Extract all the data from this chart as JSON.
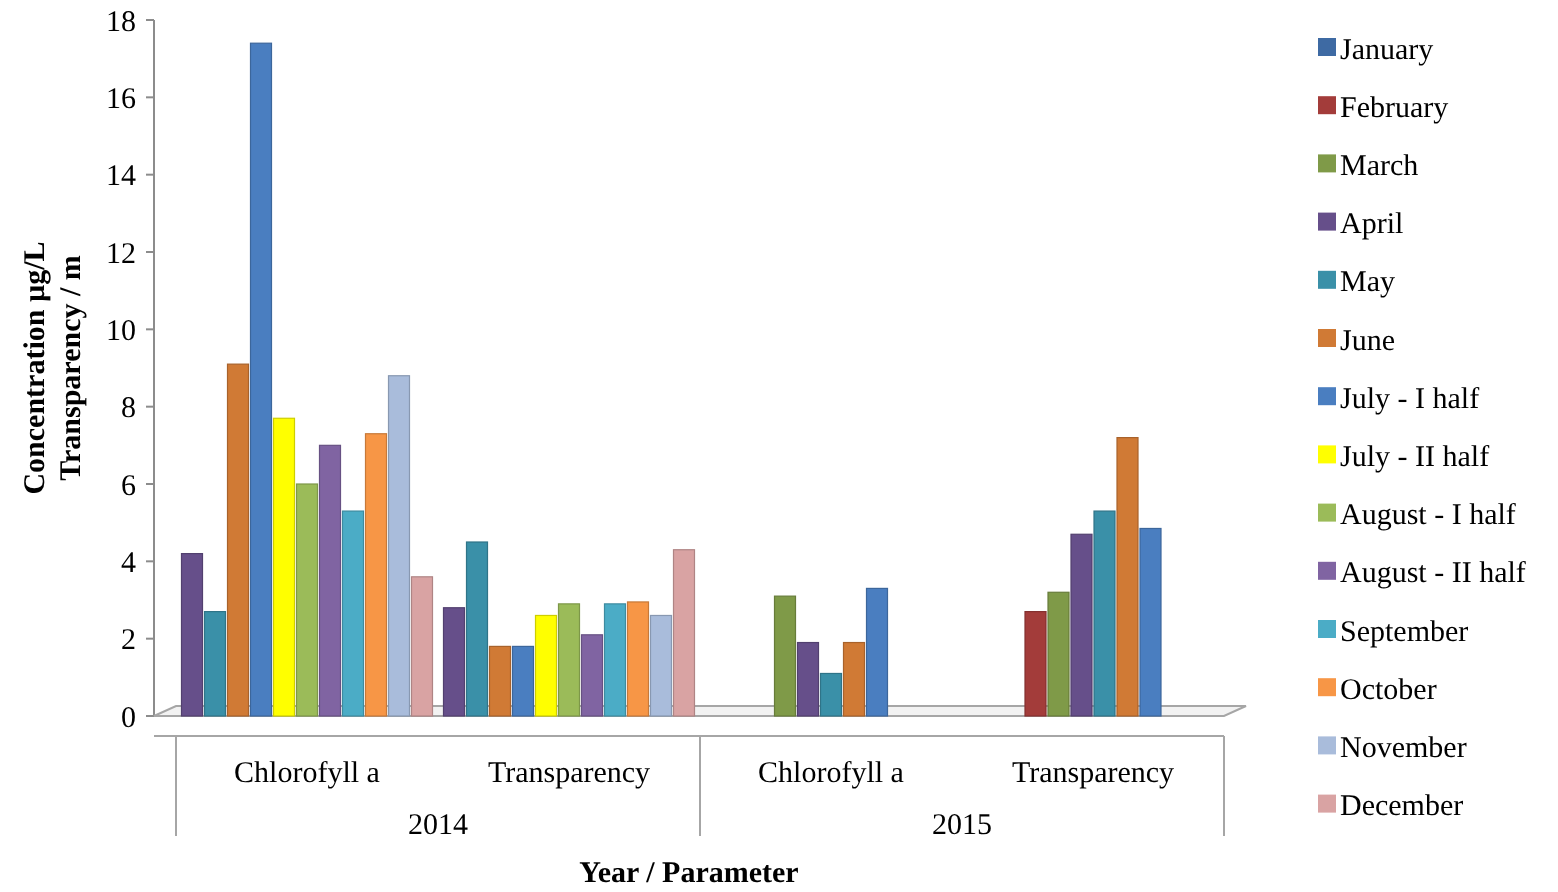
{
  "chart_data": {
    "type": "bar",
    "xlabel": "Year / Parameter",
    "ylabel": "Concentration µg/L\nTransparency / m",
    "categories": [
      "Chlorofyll a",
      "Transparency",
      "Chlorofyll a",
      "Transparency"
    ],
    "annotations": [
      "2014",
      "2015"
    ],
    "ylim": [
      0,
      18
    ],
    "yticks": [
      0,
      2,
      4,
      6,
      8,
      10,
      12,
      14,
      16,
      18
    ],
    "grid": false,
    "legend": "right",
    "series": [
      {
        "name": "January",
        "color": "#3e6aa3",
        "values": [
          null,
          null,
          null,
          null
        ]
      },
      {
        "name": "February",
        "color": "#a33c3a",
        "values": [
          null,
          null,
          null,
          2.7
        ]
      },
      {
        "name": "March",
        "color": "#7f9a48",
        "values": [
          null,
          null,
          3.1,
          3.2
        ]
      },
      {
        "name": "April",
        "color": "#664f8a",
        "values": [
          4.2,
          2.8,
          1.9,
          4.7
        ]
      },
      {
        "name": "May",
        "color": "#3a90a8",
        "values": [
          2.7,
          4.5,
          1.1,
          5.3
        ]
      },
      {
        "name": "June",
        "color": "#d07a35",
        "values": [
          9.1,
          1.8,
          1.9,
          7.2
        ]
      },
      {
        "name": "July - I half",
        "color": "#4a7ec0",
        "values": [
          17.4,
          1.8,
          3.3,
          4.85
        ]
      },
      {
        "name": "July - II half",
        "color": "#ffff00",
        "values": [
          7.7,
          2.6,
          null,
          null
        ]
      },
      {
        "name": "August - I half",
        "color": "#9bbb59",
        "values": [
          6.0,
          2.9,
          null,
          null
        ]
      },
      {
        "name": "August - II half",
        "color": "#8064a2",
        "values": [
          7.0,
          2.1,
          null,
          null
        ]
      },
      {
        "name": "September",
        "color": "#4bacc6",
        "values": [
          5.3,
          2.9,
          null,
          null
        ]
      },
      {
        "name": "October",
        "color": "#f79646",
        "values": [
          7.3,
          2.95,
          null,
          null
        ]
      },
      {
        "name": "November",
        "color": "#a9bcdb",
        "values": [
          8.8,
          2.6,
          null,
          null
        ]
      },
      {
        "name": "December",
        "color": "#d9a3a3",
        "values": [
          3.6,
          4.3,
          null,
          null
        ]
      }
    ]
  }
}
